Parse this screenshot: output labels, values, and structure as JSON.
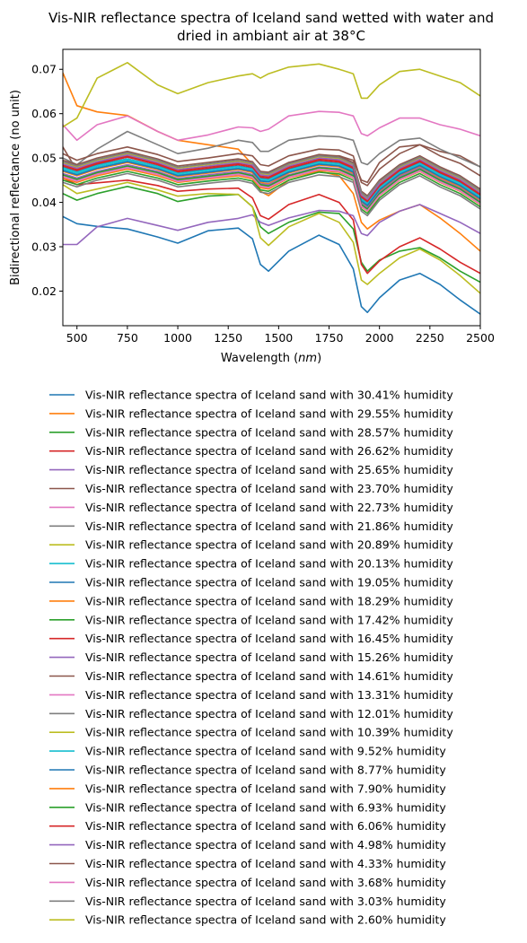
{
  "chart_data": {
    "type": "line",
    "title_line1": "Vis-NIR reflectance spectra of Iceland sand wetted with water and",
    "title_line2": "dried in ambiant air at 38°C",
    "xlabel": "Wavelength",
    "xlabel_unit": "nm",
    "ylabel": "Bidirectional reflectance (no unit)",
    "xlim": [
      430,
      2500
    ],
    "ylim": [
      0.0122,
      0.0745
    ],
    "xticks": [
      500,
      750,
      1000,
      1250,
      1500,
      1750,
      2000,
      2250,
      2500
    ],
    "yticks": [
      0.02,
      0.03,
      0.04,
      0.05,
      0.06,
      0.07
    ],
    "xtick_labels": [
      "500",
      "750",
      "1000",
      "1250",
      "1500",
      "1750",
      "2000",
      "2250",
      "2500"
    ],
    "ytick_labels": [
      "0.02",
      "0.03",
      "0.04",
      "0.05",
      "0.06",
      "0.07"
    ],
    "grid": false,
    "legend_placement": "below",
    "x": [
      430,
      500,
      600,
      750,
      900,
      1000,
      1150,
      1300,
      1370,
      1410,
      1450,
      1550,
      1700,
      1800,
      1870,
      1910,
      1940,
      2000,
      2100,
      2200,
      2300,
      2400,
      2500
    ],
    "series": [
      {
        "name": "Vis-NIR reflectance spectra of Iceland sand with 30.41% humidity",
        "color": "#1f77b4",
        "values": [
          0.0368,
          0.0352,
          0.0346,
          0.034,
          0.0322,
          0.0308,
          0.0336,
          0.0342,
          0.0318,
          0.026,
          0.0245,
          0.029,
          0.0326,
          0.0305,
          0.025,
          0.0165,
          0.0152,
          0.0185,
          0.0225,
          0.024,
          0.0215,
          0.018,
          0.0148
        ]
      },
      {
        "name": "Vis-NIR reflectance spectra of Iceland sand with 29.55% humidity",
        "color": "#ff7f0e",
        "values": [
          0.0692,
          0.0618,
          0.0604,
          0.0596,
          0.056,
          0.054,
          0.053,
          0.052,
          0.0485,
          0.0425,
          0.0415,
          0.045,
          0.047,
          0.046,
          0.042,
          0.0355,
          0.034,
          0.036,
          0.038,
          0.0395,
          0.0365,
          0.033,
          0.029
        ]
      },
      {
        "name": "Vis-NIR reflectance spectra of Iceland sand with 28.57% humidity",
        "color": "#2ca02c",
        "values": [
          0.042,
          0.0405,
          0.042,
          0.0436,
          0.042,
          0.0402,
          0.0414,
          0.0418,
          0.039,
          0.0345,
          0.033,
          0.0355,
          0.0378,
          0.0375,
          0.034,
          0.0265,
          0.0245,
          0.027,
          0.029,
          0.0298,
          0.0275,
          0.0245,
          0.022
        ]
      },
      {
        "name": "Vis-NIR reflectance spectra of Iceland sand with 26.62% humidity",
        "color": "#d62728",
        "values": [
          0.0455,
          0.044,
          0.0444,
          0.045,
          0.0438,
          0.0425,
          0.043,
          0.0432,
          0.041,
          0.037,
          0.0362,
          0.0395,
          0.0418,
          0.04,
          0.036,
          0.026,
          0.024,
          0.0268,
          0.03,
          0.032,
          0.0295,
          0.0265,
          0.024
        ]
      },
      {
        "name": "Vis-NIR reflectance spectra of Iceland sand with 25.65% humidity",
        "color": "#9467bd",
        "values": [
          0.0305,
          0.0305,
          0.0345,
          0.0364,
          0.0348,
          0.0337,
          0.0355,
          0.0364,
          0.0372,
          0.0355,
          0.0348,
          0.0365,
          0.0382,
          0.038,
          0.037,
          0.033,
          0.0325,
          0.0355,
          0.038,
          0.0395,
          0.0375,
          0.0355,
          0.033
        ]
      },
      {
        "name": "Vis-NIR reflectance spectra of Iceland sand with 23.70% humidity",
        "color": "#8c564b",
        "values": [
          0.0525,
          0.0472,
          0.049,
          0.0502,
          0.049,
          0.0472,
          0.048,
          0.0488,
          0.0488,
          0.047,
          0.0465,
          0.049,
          0.0505,
          0.0505,
          0.0495,
          0.045,
          0.0445,
          0.049,
          0.0525,
          0.053,
          0.0515,
          0.0505,
          0.048
        ]
      },
      {
        "name": "Vis-NIR reflectance spectra of Iceland sand with 22.73% humidity",
        "color": "#e377c2",
        "values": [
          0.0575,
          0.054,
          0.0575,
          0.0595,
          0.056,
          0.054,
          0.0552,
          0.057,
          0.0568,
          0.056,
          0.0565,
          0.0595,
          0.0605,
          0.0603,
          0.0595,
          0.0555,
          0.055,
          0.0568,
          0.059,
          0.059,
          0.0575,
          0.0565,
          0.055
        ]
      },
      {
        "name": "Vis-NIR reflectance spectra of Iceland sand with 21.86% humidity",
        "color": "#7f7f7f",
        "values": [
          0.05,
          0.0485,
          0.052,
          0.056,
          0.053,
          0.051,
          0.0522,
          0.054,
          0.0535,
          0.0515,
          0.0515,
          0.054,
          0.055,
          0.0548,
          0.054,
          0.049,
          0.0485,
          0.051,
          0.054,
          0.0545,
          0.052,
          0.05,
          0.048
        ]
      },
      {
        "name": "Vis-NIR reflectance spectra of Iceland sand with 20.89% humidity",
        "color": "#bcbd22",
        "values": [
          0.044,
          0.042,
          0.043,
          0.0445,
          0.0428,
          0.0414,
          0.042,
          0.0418,
          0.039,
          0.032,
          0.0303,
          0.0345,
          0.0375,
          0.0355,
          0.031,
          0.0225,
          0.0215,
          0.024,
          0.0275,
          0.0295,
          0.027,
          0.0235,
          0.0195
        ]
      },
      {
        "name": "Vis-NIR reflectance spectra of Iceland sand with 20.13% humidity",
        "color": "#17becf",
        "values": [
          0.0475,
          0.0465,
          0.048,
          0.0495,
          0.0478,
          0.0462,
          0.047,
          0.0478,
          0.0472,
          0.045,
          0.0448,
          0.047,
          0.0488,
          0.0484,
          0.047,
          0.0405,
          0.0395,
          0.043,
          0.0465,
          0.0485,
          0.046,
          0.044,
          0.041
        ]
      },
      {
        "name": "Vis-NIR reflectance spectra of Iceland sand with 19.05% humidity",
        "color": "#1f77b4",
        "values": [
          0.048,
          0.047,
          0.0485,
          0.0498,
          0.0482,
          0.0466,
          0.0475,
          0.0482,
          0.0476,
          0.0455,
          0.0452,
          0.0475,
          0.0492,
          0.0488,
          0.0474,
          0.041,
          0.04,
          0.0435,
          0.047,
          0.049,
          0.0465,
          0.0445,
          0.0415
        ]
      },
      {
        "name": "Vis-NIR reflectance spectra of Iceland sand with 18.29% humidity",
        "color": "#ff7f0e",
        "values": [
          0.047,
          0.046,
          0.0475,
          0.049,
          0.0474,
          0.0458,
          0.0466,
          0.0474,
          0.0467,
          0.0445,
          0.0442,
          0.0466,
          0.0484,
          0.048,
          0.0465,
          0.04,
          0.039,
          0.0425,
          0.046,
          0.048,
          0.0455,
          0.0435,
          0.0405
        ]
      },
      {
        "name": "Vis-NIR reflectance spectra of Iceland sand with 17.42% humidity",
        "color": "#2ca02c",
        "values": [
          0.045,
          0.044,
          0.0455,
          0.047,
          0.0455,
          0.044,
          0.0448,
          0.0455,
          0.0448,
          0.0428,
          0.0425,
          0.045,
          0.0468,
          0.0464,
          0.045,
          0.0385,
          0.0375,
          0.041,
          0.0445,
          0.0465,
          0.044,
          0.042,
          0.039
        ]
      },
      {
        "name": "Vis-NIR reflectance spectra of Iceland sand with 16.45% humidity",
        "color": "#d62728",
        "values": [
          0.0485,
          0.0475,
          0.049,
          0.0505,
          0.0488,
          0.0472,
          0.048,
          0.0488,
          0.0482,
          0.046,
          0.0458,
          0.048,
          0.0498,
          0.0494,
          0.048,
          0.0415,
          0.0405,
          0.044,
          0.0475,
          0.0495,
          0.047,
          0.045,
          0.042
        ]
      },
      {
        "name": "Vis-NIR reflectance spectra of Iceland sand with 15.26% humidity",
        "color": "#9467bd",
        "values": [
          0.0465,
          0.0455,
          0.047,
          0.0485,
          0.047,
          0.0454,
          0.0462,
          0.047,
          0.0463,
          0.0442,
          0.044,
          0.0462,
          0.048,
          0.0476,
          0.0462,
          0.0398,
          0.0388,
          0.0422,
          0.0458,
          0.0478,
          0.0452,
          0.0432,
          0.0402
        ]
      },
      {
        "name": "Vis-NIR reflectance spectra of Iceland sand with 14.61% humidity",
        "color": "#8c564b",
        "values": [
          0.0495,
          0.0485,
          0.05,
          0.0515,
          0.0498,
          0.0482,
          0.049,
          0.0498,
          0.0492,
          0.047,
          0.0468,
          0.049,
          0.0508,
          0.0504,
          0.049,
          0.0425,
          0.0415,
          0.045,
          0.0485,
          0.0505,
          0.048,
          0.046,
          0.043
        ]
      },
      {
        "name": "Vis-NIR reflectance spectra of Iceland sand with 13.31% humidity",
        "color": "#e377c2",
        "values": [
          0.046,
          0.045,
          0.0465,
          0.048,
          0.0465,
          0.0449,
          0.0457,
          0.0465,
          0.0458,
          0.0437,
          0.0435,
          0.0457,
          0.0475,
          0.0471,
          0.0457,
          0.0393,
          0.0383,
          0.0417,
          0.0453,
          0.0473,
          0.0447,
          0.0427,
          0.0397
        ]
      },
      {
        "name": "Vis-NIR reflectance spectra of Iceland sand with 12.01% humidity",
        "color": "#7f7f7f",
        "values": [
          0.0445,
          0.0435,
          0.045,
          0.0465,
          0.045,
          0.0435,
          0.0443,
          0.045,
          0.0443,
          0.0423,
          0.042,
          0.0445,
          0.0462,
          0.0458,
          0.0445,
          0.038,
          0.037,
          0.0405,
          0.044,
          0.046,
          0.0435,
          0.0415,
          0.0385
        ]
      },
      {
        "name": "Vis-NIR reflectance spectra of Iceland sand with 10.39% humidity",
        "color": "#bcbd22",
        "values": [
          0.049,
          0.048,
          0.0495,
          0.051,
          0.0493,
          0.0477,
          0.0485,
          0.0493,
          0.0487,
          0.0465,
          0.0463,
          0.0485,
          0.0503,
          0.0499,
          0.0485,
          0.042,
          0.041,
          0.0445,
          0.048,
          0.05,
          0.0475,
          0.0455,
          0.0425
        ]
      },
      {
        "name": "Vis-NIR reflectance spectra of Iceland sand with 9.52% humidity",
        "color": "#17becf",
        "values": [
          0.0478,
          0.0468,
          0.0483,
          0.0498,
          0.0481,
          0.0465,
          0.0473,
          0.0481,
          0.0475,
          0.0453,
          0.0451,
          0.0473,
          0.0491,
          0.0487,
          0.0473,
          0.0408,
          0.0398,
          0.0433,
          0.0468,
          0.0488,
          0.0463,
          0.0443,
          0.0413
        ]
      },
      {
        "name": "Vis-NIR reflectance spectra of Iceland sand with 8.77% humidity",
        "color": "#1f77b4",
        "values": [
          0.0472,
          0.0462,
          0.0477,
          0.0492,
          0.0476,
          0.046,
          0.0468,
          0.0476,
          0.047,
          0.0448,
          0.0446,
          0.0468,
          0.0486,
          0.0482,
          0.0468,
          0.0403,
          0.0393,
          0.0428,
          0.0463,
          0.0483,
          0.0458,
          0.0438,
          0.0408
        ]
      },
      {
        "name": "Vis-NIR reflectance spectra of Iceland sand with 7.90% humidity",
        "color": "#ff7f0e",
        "values": [
          0.0455,
          0.0445,
          0.046,
          0.0475,
          0.046,
          0.0445,
          0.0453,
          0.046,
          0.0453,
          0.0433,
          0.043,
          0.0455,
          0.0472,
          0.0468,
          0.0455,
          0.039,
          0.038,
          0.0415,
          0.045,
          0.047,
          0.0445,
          0.0425,
          0.0395
        ]
      },
      {
        "name": "Vis-NIR reflectance spectra of Iceland sand with 6.93% humidity",
        "color": "#2ca02c",
        "values": [
          0.0462,
          0.0452,
          0.0467,
          0.0482,
          0.0467,
          0.0451,
          0.0459,
          0.0467,
          0.046,
          0.044,
          0.0437,
          0.046,
          0.0478,
          0.0474,
          0.046,
          0.0395,
          0.0385,
          0.042,
          0.0455,
          0.0475,
          0.045,
          0.043,
          0.04
        ]
      },
      {
        "name": "Vis-NIR reflectance spectra of Iceland sand with 6.06% humidity",
        "color": "#d62728",
        "values": [
          0.0482,
          0.0472,
          0.0487,
          0.0502,
          0.0485,
          0.0469,
          0.0477,
          0.0485,
          0.0479,
          0.0457,
          0.0455,
          0.0477,
          0.0495,
          0.0491,
          0.0477,
          0.0412,
          0.0402,
          0.0437,
          0.0472,
          0.0492,
          0.0467,
          0.0447,
          0.0417
        ]
      },
      {
        "name": "Vis-NIR reflectance spectra of Iceland sand with 4.98% humidity",
        "color": "#9467bd",
        "values": [
          0.0487,
          0.0477,
          0.0492,
          0.0507,
          0.049,
          0.0474,
          0.0482,
          0.049,
          0.0484,
          0.0462,
          0.046,
          0.0482,
          0.05,
          0.0496,
          0.0482,
          0.0417,
          0.0407,
          0.0442,
          0.0477,
          0.0497,
          0.0472,
          0.0452,
          0.0422
        ]
      },
      {
        "name": "Vis-NIR reflectance spectra of Iceland sand with 4.33% humidity",
        "color": "#8c564b",
        "values": [
          0.051,
          0.0495,
          0.051,
          0.0525,
          0.0508,
          0.0492,
          0.05,
          0.051,
          0.0505,
          0.0485,
          0.0482,
          0.0505,
          0.052,
          0.0518,
          0.0505,
          0.0445,
          0.0438,
          0.0475,
          0.051,
          0.053,
          0.0505,
          0.0488,
          0.046
        ]
      },
      {
        "name": "Vis-NIR reflectance spectra of Iceland sand with 3.68% humidity",
        "color": "#e377c2",
        "values": [
          0.0458,
          0.0448,
          0.0463,
          0.0478,
          0.0463,
          0.0447,
          0.0455,
          0.0463,
          0.0456,
          0.0436,
          0.0433,
          0.0456,
          0.0474,
          0.047,
          0.0456,
          0.0391,
          0.0381,
          0.0416,
          0.0451,
          0.0471,
          0.0446,
          0.0426,
          0.0396
        ]
      },
      {
        "name": "Vis-NIR reflectance spectra of Iceland sand with 3.03% humidity",
        "color": "#7f7f7f",
        "values": [
          0.0492,
          0.0482,
          0.0497,
          0.0512,
          0.0495,
          0.0479,
          0.0487,
          0.0495,
          0.0489,
          0.0467,
          0.0465,
          0.0487,
          0.0505,
          0.0501,
          0.0487,
          0.0422,
          0.0412,
          0.0447,
          0.0482,
          0.0502,
          0.0477,
          0.0457,
          0.0427
        ]
      },
      {
        "name": "Vis-NIR reflectance spectra of Iceland sand with 2.60% humidity",
        "color": "#bcbd22",
        "values": [
          0.057,
          0.059,
          0.068,
          0.0715,
          0.0665,
          0.0645,
          0.067,
          0.0685,
          0.069,
          0.068,
          0.069,
          0.0705,
          0.0712,
          0.07,
          0.069,
          0.0635,
          0.0635,
          0.0665,
          0.0695,
          0.07,
          0.0685,
          0.067,
          0.064
        ]
      }
    ]
  }
}
